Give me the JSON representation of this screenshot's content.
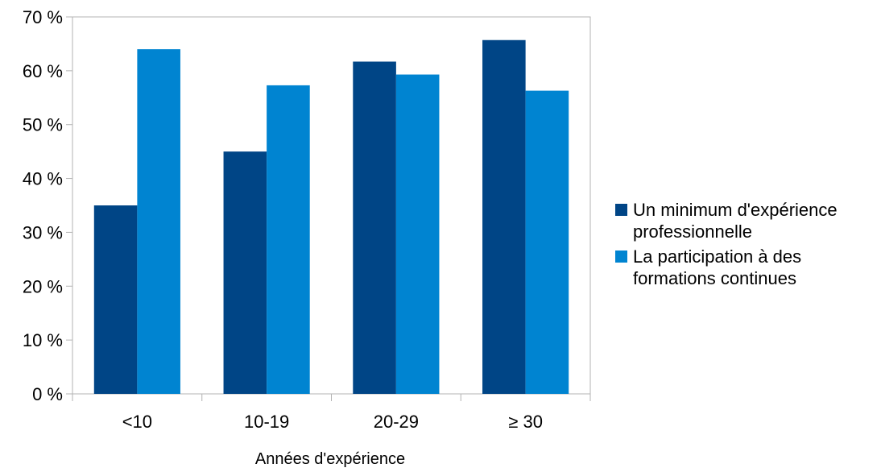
{
  "chart_data": {
    "type": "bar",
    "title": "",
    "xlabel": "Années d'expérience",
    "ylabel": "",
    "categories": [
      "<10",
      "10-19",
      "20-29",
      "≥ 30"
    ],
    "series": [
      {
        "name": "Un minimum d'expérience professionnelle",
        "color": "#004586",
        "values": [
          35,
          45,
          61.7,
          65.7
        ]
      },
      {
        "name": "La participation à des formations continues",
        "color": "#0084d1",
        "values": [
          64,
          57.3,
          59.3,
          56.3
        ]
      }
    ],
    "ylim": [
      0,
      70
    ],
    "yticks": [
      "0 %",
      "10 %",
      "20 %",
      "30 %",
      "40 %",
      "50 %",
      "60 %",
      "70 %"
    ],
    "grid": false,
    "legend_position": "right"
  }
}
